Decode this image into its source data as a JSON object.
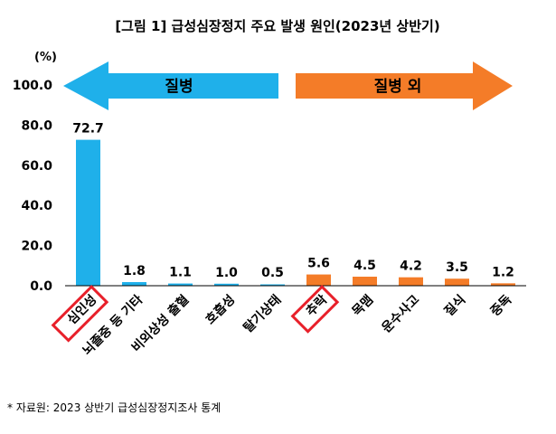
{
  "chart_data": {
    "type": "bar",
    "title": "[그림 1] 급성심장정지 주요 발생 원인(2023년 상반기)",
    "ylabel": "(%)",
    "ylim": [
      0,
      100
    ],
    "yticks": [
      "100.0",
      "80.0",
      "60.0",
      "40.0",
      "20.0",
      "0.0"
    ],
    "ytick_values": [
      100,
      80,
      60,
      40,
      20,
      0
    ],
    "categories": [
      "심인성",
      "뇌졸중 등 기타",
      "비외상성 출혈",
      "호흡성",
      "탈기상태",
      "추락",
      "목맴",
      "운수사고",
      "질식",
      "중독"
    ],
    "values": [
      72.7,
      1.8,
      1.1,
      1.0,
      0.5,
      5.6,
      4.5,
      4.2,
      3.5,
      1.2
    ],
    "value_labels": [
      "72.7",
      "1.8",
      "1.1",
      "1.0",
      "0.5",
      "5.6",
      "4.5",
      "4.2",
      "3.5",
      "1.2"
    ],
    "groups": [
      {
        "label": "질병",
        "color": "#1fb0ea",
        "count": 5
      },
      {
        "label": "질병 외",
        "color": "#f47c28",
        "count": 5
      }
    ],
    "highlighted": [
      "심인성",
      "추락"
    ],
    "highlight_color": "#e8202a",
    "grid": false,
    "legend": "none"
  },
  "source_note": "* 자료원: 2023 상반기 급성심장정지조사 통계"
}
